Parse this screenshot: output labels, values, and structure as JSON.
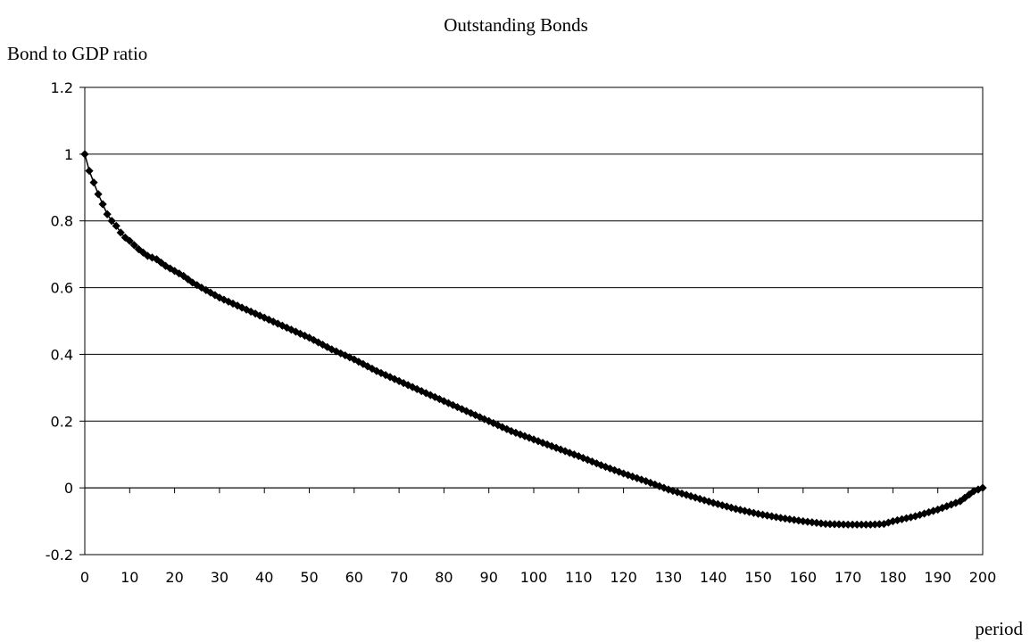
{
  "chart_data": {
    "type": "scatter",
    "title": "Outstanding Bonds",
    "xlabel": "period",
    "ylabel": "Bond to GDP ratio",
    "xlim": [
      0,
      200
    ],
    "ylim": [
      -0.2,
      1.2
    ],
    "x_ticks": [
      0,
      10,
      20,
      30,
      40,
      50,
      60,
      70,
      80,
      90,
      100,
      110,
      120,
      130,
      140,
      150,
      160,
      170,
      180,
      190,
      200
    ],
    "y_ticks": [
      1.2,
      1,
      0.8,
      0.6,
      0.4,
      0.2,
      0,
      -0.2
    ],
    "y_tick_labels": [
      "1.2",
      "1",
      "0.8",
      "0.6",
      "0.4",
      "0.2",
      "0",
      "-0.2"
    ],
    "grid": "horizontal",
    "marker": "diamond",
    "color": "#000000",
    "series": [
      {
        "x": [
          0,
          1,
          2,
          3,
          4,
          5,
          6,
          7,
          8,
          9,
          10,
          12,
          14,
          15,
          16,
          18,
          20,
          22,
          24,
          26,
          28,
          30,
          35,
          40,
          45,
          50,
          55,
          60,
          65,
          70,
          75,
          80,
          85,
          90,
          95,
          100,
          105,
          110,
          115,
          120,
          125,
          130,
          135,
          140,
          145,
          150,
          155,
          160,
          165,
          170,
          175,
          178,
          180,
          185,
          190,
          195,
          198,
          200
        ],
        "y": [
          1.0,
          0.95,
          0.915,
          0.88,
          0.85,
          0.82,
          0.8,
          0.785,
          0.765,
          0.75,
          0.74,
          0.715,
          0.695,
          0.69,
          0.685,
          0.665,
          0.65,
          0.635,
          0.615,
          0.6,
          0.585,
          0.57,
          0.54,
          0.51,
          0.48,
          0.45,
          0.415,
          0.385,
          0.35,
          0.32,
          0.29,
          0.26,
          0.23,
          0.2,
          0.17,
          0.145,
          0.12,
          0.095,
          0.068,
          0.043,
          0.02,
          -0.005,
          -0.025,
          -0.045,
          -0.063,
          -0.078,
          -0.09,
          -0.1,
          -0.108,
          -0.11,
          -0.11,
          -0.108,
          -0.1,
          -0.085,
          -0.065,
          -0.04,
          -0.01,
          0.0
        ]
      }
    ]
  }
}
